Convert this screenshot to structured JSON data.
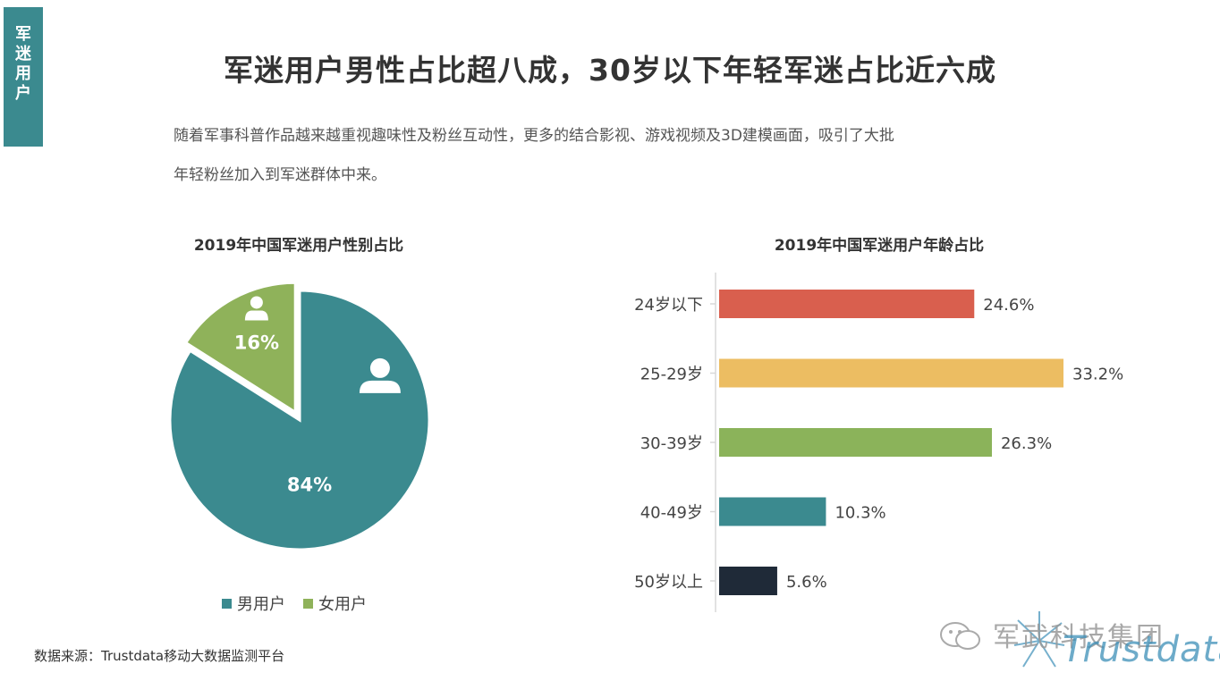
{
  "side_tab": "军迷用户",
  "page_title": "军迷用户男性占比超八成，30岁以下年轻军迷占比近六成",
  "intro_line1": "随着军事科普作品越来越重视趣味性及粉丝互动性，更多的结合影视、游戏视频及3D建模画面，吸引了大批",
  "intro_line2": "年轻粉丝加入到军迷群体中来。",
  "source": "数据来源：Trustdata移动大数据监测平台",
  "watermark": {
    "text": "军武科技集团",
    "logo": "Trustdata"
  },
  "chart_data": [
    {
      "type": "pie",
      "title": "2019年中国军迷用户性别占比",
      "categories": [
        "男用户",
        "女用户"
      ],
      "values": [
        84,
        16
      ],
      "labels": [
        "84%",
        "16%"
      ],
      "colors": [
        "#3b8a8f",
        "#8fb25a"
      ],
      "icons": [
        "male-user-icon",
        "female-user-icon"
      ],
      "legend": "bottom"
    },
    {
      "type": "bar",
      "orientation": "horizontal",
      "title": "2019年中国军迷用户年龄占比",
      "categories": [
        "24岁以下",
        "25-29岁",
        "30-39岁",
        "40-49岁",
        "50岁以上"
      ],
      "values": [
        24.6,
        33.2,
        26.3,
        10.3,
        5.6
      ],
      "labels": [
        "24.6%",
        "33.2%",
        "26.3%",
        "10.3%",
        "5.6%"
      ],
      "colors": [
        "#d95f4e",
        "#ecbd62",
        "#8bb35a",
        "#3b8a8f",
        "#1f2a38"
      ],
      "xlim": [
        0,
        33.2
      ],
      "grid": false
    }
  ]
}
